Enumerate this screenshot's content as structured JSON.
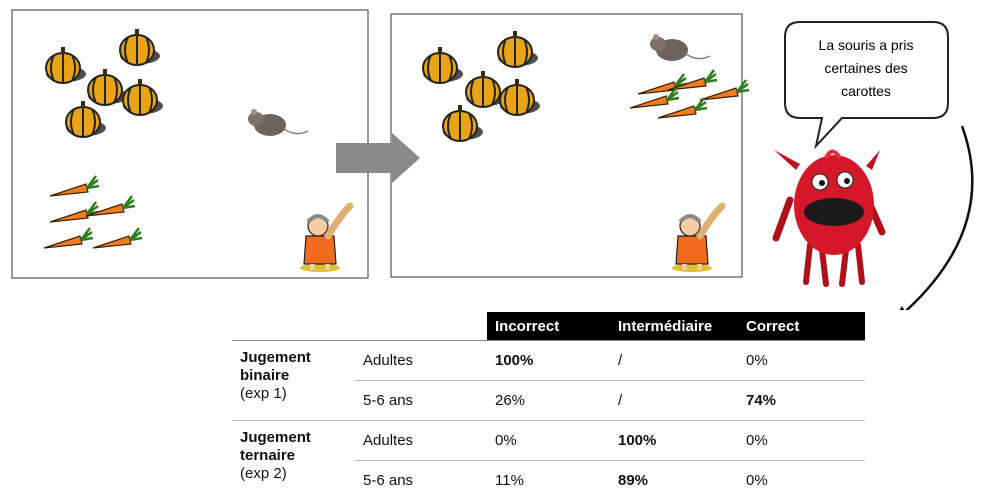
{
  "speech_bubble": {
    "lines": [
      "La souris a pris",
      "certaines des",
      "carottes"
    ]
  },
  "table": {
    "header": [
      "Incorrect",
      "Intermédiaire",
      "Correct"
    ],
    "groups": [
      {
        "label_lines": [
          "Jugement",
          "binaire"
        ],
        "note": "(exp 1)",
        "rows": [
          [
            "Adultes",
            "100%",
            "/",
            "0%"
          ],
          [
            "5-6 ans",
            "26%",
            "/",
            "74%"
          ]
        ]
      },
      {
        "label_lines": [
          "Jugement",
          "ternaire"
        ],
        "note": "(exp 2)",
        "rows": [
          [
            "Adultes",
            "0%",
            "100%",
            "0%"
          ],
          [
            "5-6 ans",
            "11%",
            "89%",
            "0%"
          ]
        ]
      }
    ]
  }
}
